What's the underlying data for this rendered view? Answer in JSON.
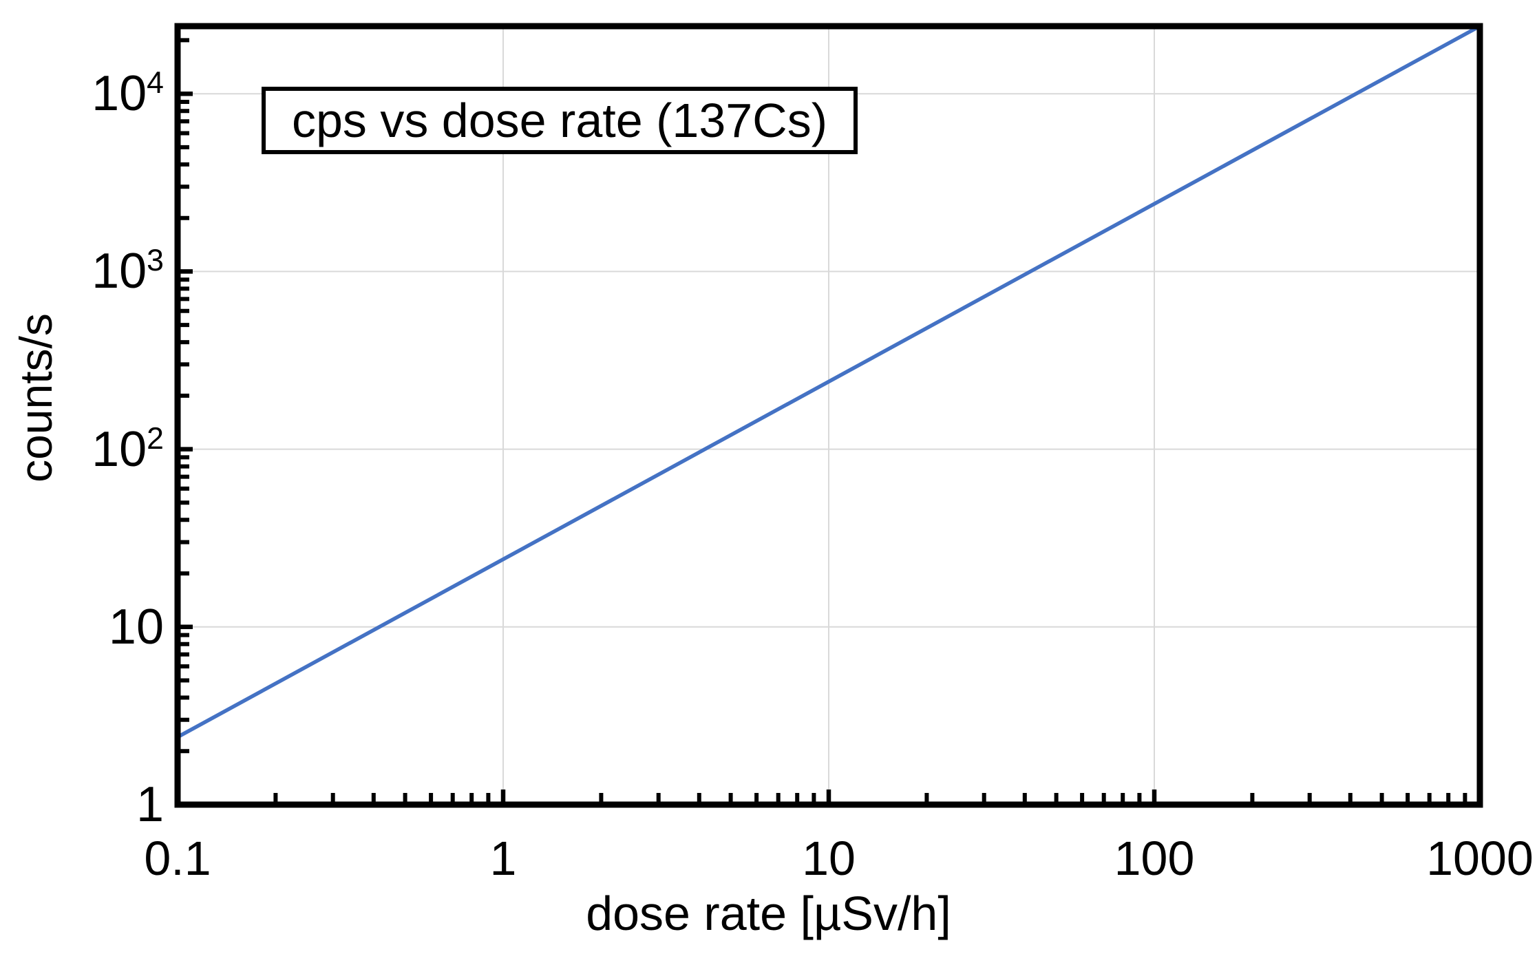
{
  "figure": {
    "background": "#ffffff"
  },
  "chart_data": {
    "type": "line",
    "title": "cps vs dose rate (137Cs)",
    "xlabel": "dose rate [µSv/h]",
    "ylabel": "counts/s",
    "x_scale": "log",
    "y_scale": "log",
    "xlim": [
      0.1,
      1000
    ],
    "ylim": [
      1,
      24000
    ],
    "grid": true,
    "legend": "none",
    "series": [
      {
        "name": "cps vs dose rate (137Cs)",
        "color": "#4472C4",
        "relationship": "cps = 24 x dose rate (straight line on log-log axes)",
        "x": [
          0.1,
          1,
          10,
          100,
          1000
        ],
        "y": [
          2.4,
          24,
          240,
          2400,
          24000
        ]
      }
    ],
    "x_axis": {
      "ticks": [
        {
          "value": 0.1,
          "text": "0.1"
        },
        {
          "value": 1,
          "text": "1"
        },
        {
          "value": 10,
          "text": "10"
        },
        {
          "value": 100,
          "text": "100"
        },
        {
          "value": 1000,
          "text": "1000"
        }
      ],
      "major_ticks": [
        1,
        10,
        100
      ],
      "minor_ticks": [
        0.2,
        0.3,
        0.4,
        0.5,
        0.6,
        0.7,
        0.8,
        0.9,
        2,
        3,
        4,
        5,
        6,
        7,
        8,
        9,
        20,
        30,
        40,
        50,
        60,
        70,
        80,
        90,
        200,
        300,
        400,
        500,
        600,
        700,
        800,
        900
      ],
      "gridlines": [
        1,
        10,
        100
      ]
    },
    "y_axis": {
      "ticks": [
        {
          "value": 1,
          "text": "1",
          "sup": ""
        },
        {
          "value": 10,
          "text": "10",
          "sup": ""
        },
        {
          "value": 100,
          "text": "10",
          "sup": "2"
        },
        {
          "value": 1000,
          "text": "10",
          "sup": "3"
        },
        {
          "value": 10000,
          "text": "10",
          "sup": "4"
        }
      ],
      "major_ticks": [
        10,
        100,
        1000,
        10000
      ],
      "minor_ticks": [
        2,
        3,
        4,
        5,
        6,
        7,
        8,
        9,
        20,
        30,
        40,
        50,
        60,
        70,
        80,
        90,
        200,
        300,
        400,
        500,
        600,
        700,
        800,
        900,
        2000,
        3000,
        4000,
        5000,
        6000,
        7000,
        8000,
        9000,
        20000
      ],
      "gridlines": [
        10,
        100,
        1000,
        10000
      ]
    },
    "colors": {
      "line": "#4472C4",
      "grid": "#D9D9D9",
      "axis": "#000000",
      "plot_background": "#ffffff"
    }
  }
}
